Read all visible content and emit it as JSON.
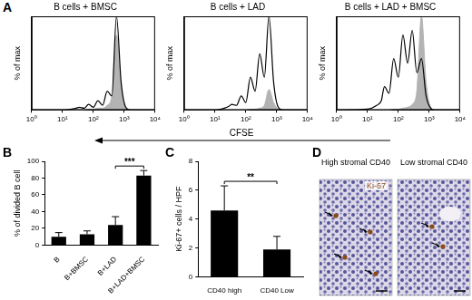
{
  "chart_data": [
    {
      "type": "line",
      "title": "B cells + BMSC",
      "ylabel": "% of max",
      "log": "x",
      "tick_labels": "x",
      "x": [
        1,
        10,
        20,
        28.2,
        35.5,
        50.1,
        70.8,
        100,
        141,
        200,
        282,
        398,
        562,
        794,
        1122,
        1585,
        3162,
        10000
      ],
      "xlim": [
        1,
        10000
      ],
      "xticks": [
        {
          "value": 1,
          "label": "10⁰"
        },
        {
          "value": 10,
          "label": "10¹"
        },
        {
          "value": 100,
          "label": "10²"
        },
        {
          "value": 1000,
          "label": "10³"
        },
        {
          "value": 10000,
          "label": "10⁴"
        }
      ],
      "ylim": [
        0,
        100
      ],
      "series": [
        {
          "type": "line",
          "color": "#000000",
          "values": [
            0,
            0,
            1,
            2,
            3,
            2,
            6,
            3,
            10,
            5,
            20,
            15,
            100,
            30,
            3,
            0,
            0,
            0
          ]
        },
        {
          "type": "area",
          "color": "#b3b3b3",
          "values": [
            0,
            0,
            0,
            0,
            0,
            0,
            1,
            1,
            2,
            2,
            5,
            15,
            80,
            25,
            2,
            0,
            0,
            0
          ]
        }
      ]
    },
    {
      "type": "line",
      "title": "B cells + LAD",
      "ylabel": "% of max",
      "log": "x",
      "tick_labels": "x",
      "x": [
        1,
        10,
        20,
        28.2,
        35.5,
        50.1,
        70.8,
        100,
        141,
        200,
        282,
        398,
        562,
        794,
        1122,
        1585,
        3162,
        10000
      ],
      "xlim": [
        1,
        10000
      ],
      "xticks": [
        {
          "value": 1,
          "label": "10⁰"
        },
        {
          "value": 10,
          "label": "10¹"
        },
        {
          "value": 100,
          "label": "10²"
        },
        {
          "value": 1000,
          "label": "10³"
        },
        {
          "value": 10000,
          "label": "10⁴"
        }
      ],
      "ylim": [
        0,
        100
      ],
      "series": [
        {
          "type": "line",
          "color": "#000000",
          "values": [
            0,
            0,
            2,
            4,
            6,
            5,
            15,
            8,
            35,
            20,
            60,
            35,
            100,
            30,
            3,
            0,
            0,
            0
          ]
        },
        {
          "type": "area",
          "color": "#b3b3b3",
          "values": [
            0,
            0,
            0,
            0,
            0,
            0,
            0,
            0,
            1,
            1,
            2,
            5,
            22,
            8,
            1,
            0,
            0,
            0
          ]
        }
      ]
    },
    {
      "type": "line",
      "title": "B cells + LAD + BMSC",
      "ylabel": "% of max",
      "log": "x",
      "tick_labels": "x",
      "x": [
        1,
        10,
        20,
        28.2,
        35.5,
        50.1,
        70.8,
        100,
        141,
        200,
        282,
        398,
        562,
        794,
        1122,
        1585,
        3162,
        10000
      ],
      "xlim": [
        1,
        10000
      ],
      "xticks": [
        {
          "value": 1,
          "label": "10⁰"
        },
        {
          "value": 10,
          "label": "10¹"
        },
        {
          "value": 100,
          "label": "10²"
        },
        {
          "value": 1000,
          "label": "10³"
        },
        {
          "value": 10000,
          "label": "10⁴"
        }
      ],
      "ylim": [
        0,
        100
      ],
      "series": [
        {
          "type": "line",
          "color": "#000000",
          "values": [
            0,
            1,
            5,
            10,
            25,
            18,
            55,
            35,
            80,
            50,
            85,
            40,
            55,
            15,
            2,
            0,
            0,
            0
          ]
        },
        {
          "type": "area",
          "color": "#b3b3b3",
          "values": [
            0,
            0,
            0,
            0,
            0,
            0,
            1,
            1,
            2,
            3,
            6,
            20,
            100,
            30,
            3,
            0,
            0,
            0
          ]
        }
      ]
    },
    {
      "type": "bar",
      "ylabel": "% of divided B cell",
      "categories": [
        "B",
        "B+BMSC",
        "B+LAD",
        "B+LAD+BMSC"
      ],
      "values": [
        10,
        13,
        24,
        83
      ],
      "errors": [
        5,
        4,
        10,
        6
      ],
      "color": "#000000",
      "ylim": [
        0,
        100
      ],
      "yticks": [
        0,
        20,
        40,
        60,
        80,
        100
      ],
      "annotations": [
        {
          "text": "***",
          "from": "B+LAD",
          "to": "B+LAD+BMSC"
        }
      ]
    },
    {
      "type": "bar",
      "ylabel": "Ki-67+ cells / HPF",
      "categories": [
        "CD40 high",
        "CD40 Low"
      ],
      "values": [
        4.6,
        1.9
      ],
      "errors": [
        1.7,
        0.9
      ],
      "color": "#000000",
      "ylim": [
        0,
        8
      ],
      "yticks": [
        0,
        2,
        4,
        6,
        8
      ],
      "annotations": [
        {
          "text": "**",
          "from": "CD40 high",
          "to": "CD40 Low"
        }
      ]
    }
  ],
  "panel_labels": [
    "A",
    "B",
    "C",
    "D"
  ],
  "shared_xlabel": "CFSE",
  "images": {
    "titles": [
      "High stromal CD40",
      "Low stromal CD40"
    ],
    "stain": "Ki-67"
  }
}
